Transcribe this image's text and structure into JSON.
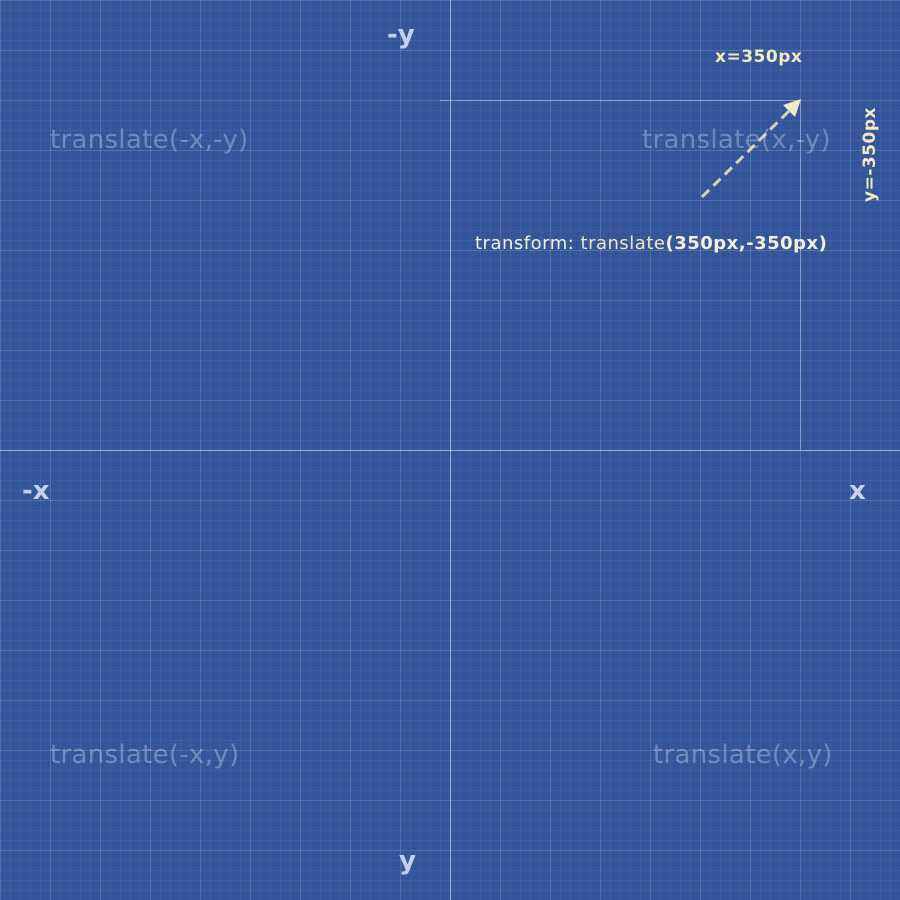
{
  "axes": {
    "neg_y": "-y",
    "pos_y": "y",
    "neg_x": "-x",
    "pos_x": "x"
  },
  "quadrants": {
    "top_left": "translate(-x,-y)",
    "top_right": "translate(x,-y)",
    "bottom_left": "translate(-x,y)",
    "bottom_right": "translate(x,y)"
  },
  "annotation": {
    "x_value": "x=350px",
    "y_value": "y=-350px",
    "code_prefix": "transform: ",
    "code_fn": "translate",
    "code_args": "(350px,-350px)",
    "translate_x": 350,
    "translate_y": -350
  },
  "colors": {
    "background": "#34559a",
    "accent": "#f2e9c4",
    "axis_label": "#c5d1ea"
  }
}
